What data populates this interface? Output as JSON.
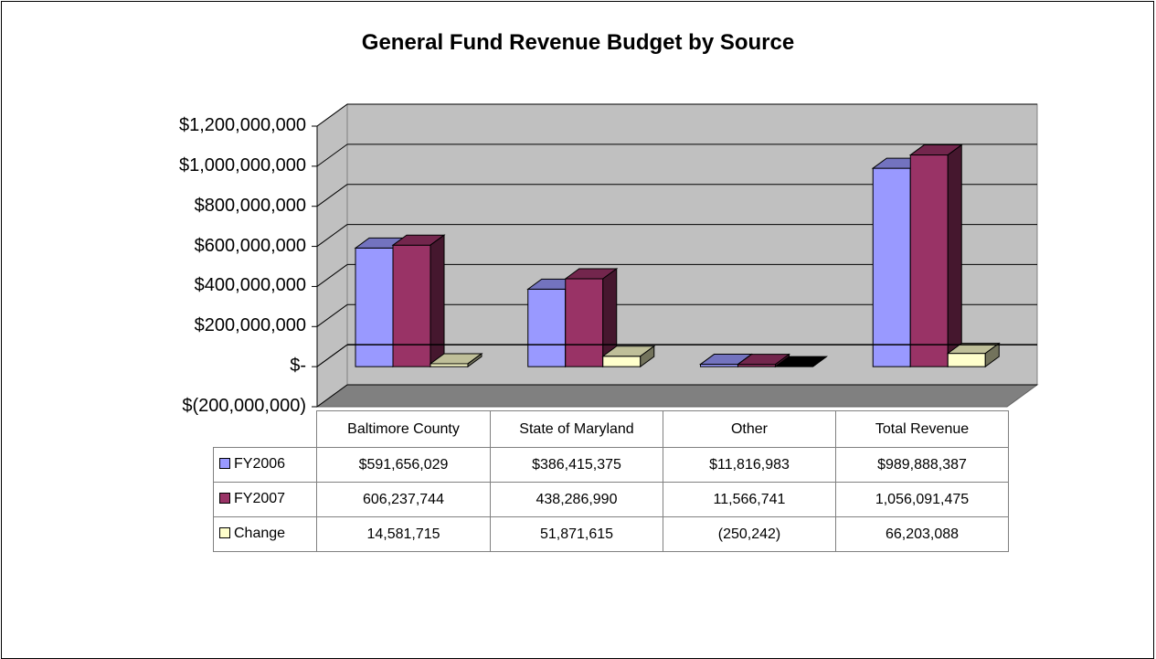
{
  "chart_data": {
    "type": "bar",
    "title": "General Fund Revenue Budget by Source",
    "categories": [
      "Baltimore County",
      "State of Maryland",
      "Other",
      "Total Revenue"
    ],
    "series": [
      {
        "name": "FY2006",
        "color": "#9999ff",
        "values": [
          591656029,
          386415375,
          11816983,
          989888387
        ],
        "labels": [
          "$591,656,029",
          "$386,415,375",
          "$11,816,983",
          "$989,888,387"
        ]
      },
      {
        "name": "FY2007",
        "color": "#993366",
        "values": [
          606237744,
          438286990,
          11566741,
          1056091475
        ],
        "labels": [
          "606,237,744",
          "438,286,990",
          "11,566,741",
          "1,056,091,475"
        ]
      },
      {
        "name": "Change",
        "color": "#ffffcc",
        "values": [
          14581715,
          51871615,
          -250242,
          66203088
        ],
        "labels": [
          "14,581,715",
          "51,871,615",
          "(250,242)",
          "66,203,088"
        ]
      }
    ],
    "y_ticks": [
      "$1,200,000,000",
      "$1,000,000,000",
      "$800,000,000",
      "$600,000,000",
      "$400,000,000",
      "$200,000,000",
      "$-",
      "$(200,000,000)"
    ],
    "ylim": [
      -200000000,
      1200000000
    ],
    "grid": true,
    "legend": "data-table"
  }
}
